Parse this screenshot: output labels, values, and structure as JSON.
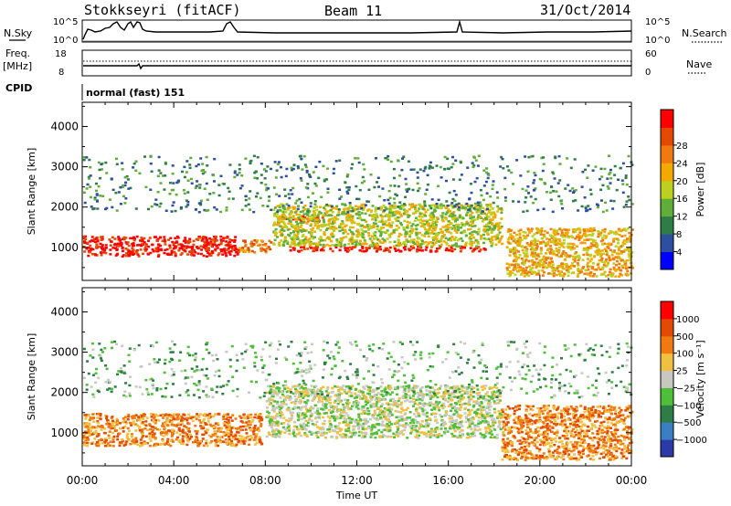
{
  "header": {
    "station": "Stokkseyri (fitACF)",
    "beam": "Beam 11",
    "date": "31/Oct/2014"
  },
  "top_panels": {
    "nsky_label": "N.Sky",
    "nsky_ticks": [
      "10^5",
      "10^0"
    ],
    "nsearch_label": "N.Search",
    "nsearch_ticks": [
      "10^5",
      "10^0"
    ],
    "freq_label": "Freq.",
    "freq_unit": "[MHz]",
    "freq_ticks": [
      "18",
      "8"
    ],
    "nave_label": "Nave",
    "nave_ticks": [
      "60",
      "0"
    ],
    "cpid_label": "CPID",
    "cpid_value": "normal (fast) 151"
  },
  "chart_data": [
    {
      "type": "heatmap",
      "name": "power-panel",
      "ylabel": "Slant Range [km]",
      "yticks": [
        1000,
        2000,
        3000,
        4000
      ],
      "ylim": [
        180,
        4600
      ],
      "xlim_hours": [
        0,
        24
      ],
      "colorbar_label": "Power [dB]",
      "colorbar_ticks": [
        "4",
        "8",
        "12",
        "16",
        "20",
        "24",
        "28"
      ],
      "colorbar_colors": [
        "#0000ff",
        "#2e4fa0",
        "#2f7d46",
        "#5fae3a",
        "#bcd11f",
        "#f2a900",
        "#f07a10",
        "#e34a00",
        "#ff0000"
      ],
      "features": [
        {
          "from": 0.0,
          "to": 6.8,
          "range_low": 800,
          "range_high": 1300,
          "level": 8
        },
        {
          "from": 6.8,
          "to": 8.2,
          "range_low": 900,
          "range_high": 1200,
          "level": 6
        },
        {
          "from": 9.0,
          "to": 17.6,
          "range_low": 920,
          "range_high": 1050,
          "level": 8
        },
        {
          "from": 8.5,
          "to": 10.5,
          "range_low": 1650,
          "range_high": 1800,
          "level": 7
        },
        {
          "from": 8.3,
          "to": 18.3,
          "range_low": 1050,
          "range_high": 2100,
          "level": 4
        },
        {
          "from": 18.5,
          "to": 24.0,
          "range_low": 300,
          "range_high": 1500,
          "level": 5
        },
        {
          "from": 0.0,
          "to": 24.0,
          "range_low": 1900,
          "range_high": 3300,
          "level": 2
        }
      ]
    },
    {
      "type": "heatmap",
      "name": "velocity-panel",
      "ylabel": "Slant Range [km]",
      "yticks": [
        1000,
        2000,
        3000,
        4000
      ],
      "ylim": [
        180,
        4600
      ],
      "xlim_hours": [
        0,
        24
      ],
      "colorbar_label": "Velocity [m s⁻¹]",
      "colorbar_ticks": [
        "1000",
        "500",
        "100",
        "25",
        "−25",
        "−100",
        "−500",
        "−1000"
      ],
      "colorbar_colors": [
        "#2b3aa8",
        "#3a7fc4",
        "#2f7d46",
        "#4fbf3a",
        "#c8c8c0",
        "#f2c040",
        "#f07a10",
        "#e34a00",
        "#ff0000"
      ],
      "features": [
        {
          "from": 0.0,
          "to": 7.8,
          "range_low": 700,
          "range_high": 1500,
          "level": 6
        },
        {
          "from": 8.0,
          "to": 18.3,
          "range_low": 900,
          "range_high": 2200,
          "level": 4
        },
        {
          "from": 18.3,
          "to": 24.0,
          "range_low": 350,
          "range_high": 1700,
          "level": 6
        },
        {
          "from": 0.0,
          "to": 24.0,
          "range_low": 1900,
          "range_high": 3300,
          "level": 3
        }
      ]
    }
  ],
  "xaxis": {
    "ticks": [
      "00:00",
      "04:00",
      "08:00",
      "12:00",
      "16:00",
      "20:00",
      "00:00"
    ],
    "label": "Time UT"
  }
}
